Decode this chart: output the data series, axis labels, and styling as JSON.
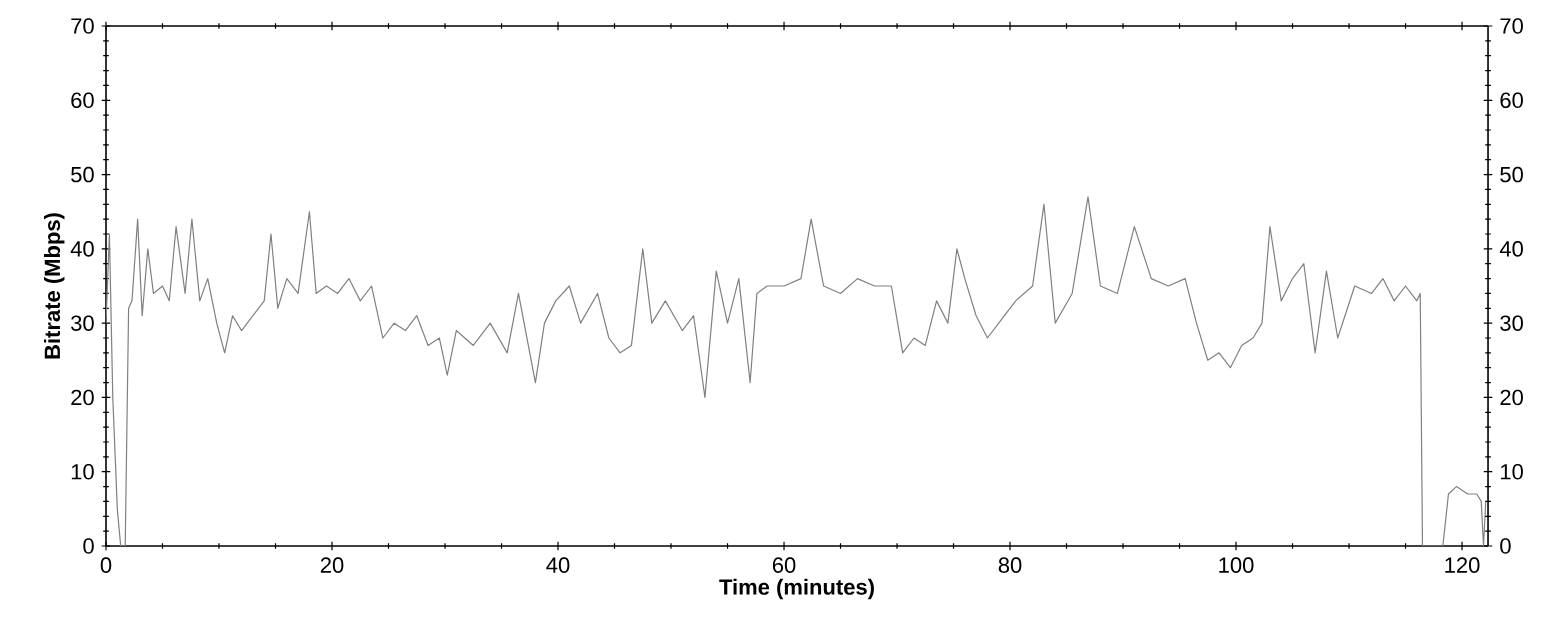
{
  "chart_data": {
    "type": "line",
    "xlabel": "Time (minutes)",
    "ylabel": "Bitrate (Mbps)",
    "xlim": [
      0,
      122.3
    ],
    "xticks": [
      0,
      20,
      40,
      60,
      80,
      100,
      120
    ],
    "ylim": [
      0,
      70
    ],
    "yticks": [
      0,
      10,
      20,
      30,
      40,
      50,
      60,
      70
    ],
    "y2lim": [
      0,
      70
    ],
    "y2ticks": [
      0,
      10,
      20,
      30,
      40,
      50,
      60,
      70
    ],
    "grid": false,
    "marker": "none",
    "line_style": "solid",
    "series": [
      {
        "color": "#808080",
        "x": [
          0,
          0.3,
          0.6,
          1.0,
          1.3,
          1.7,
          2.0,
          2.3,
          2.8,
          3.2,
          3.7,
          4.2,
          5.0,
          5.6,
          6.2,
          7.0,
          7.6,
          8.3,
          9.0,
          9.8,
          10.5,
          11.2,
          12.0,
          13.0,
          14.0,
          14.6,
          15.2,
          16.0,
          17.0,
          18.0,
          18.6,
          19.5,
          20.5,
          21.5,
          22.5,
          23.5,
          24.5,
          25.5,
          26.5,
          27.5,
          28.5,
          29.5,
          30.2,
          31.0,
          32.5,
          34.0,
          35.5,
          36.5,
          38.0,
          38.8,
          39.8,
          41.0,
          42.0,
          43.5,
          44.5,
          45.5,
          46.5,
          47.5,
          48.3,
          49.5,
          51.0,
          52.0,
          53.0,
          54.0,
          55.0,
          56.0,
          57.0,
          57.6,
          58.5,
          60.0,
          61.5,
          62.4,
          63.5,
          65.0,
          66.5,
          68.0,
          69.5,
          70.5,
          71.5,
          72.5,
          73.5,
          74.5,
          75.3,
          76.0,
          77.0,
          78.0,
          79.0,
          80.5,
          82.0,
          83.0,
          84.0,
          85.5,
          86.9,
          88.0,
          89.5,
          91.0,
          92.5,
          94.0,
          95.5,
          96.5,
          97.5,
          98.5,
          99.5,
          100.5,
          101.5,
          102.3,
          103.0,
          104.0,
          105.0,
          106.0,
          107.0,
          108.0,
          109.0,
          110.5,
          112.0,
          113.0,
          114.0,
          115.0,
          116.0,
          116.3,
          116.5,
          118.3,
          118.8,
          119.5,
          120.5,
          121.3,
          121.7,
          121.9,
          122.1
        ],
        "values": [
          30,
          42,
          20,
          5,
          0,
          0,
          32,
          33,
          44,
          31,
          40,
          34,
          35,
          33,
          43,
          34,
          44,
          33,
          36,
          30,
          26,
          31,
          29,
          31,
          33,
          42,
          32,
          36,
          34,
          45,
          34,
          35,
          34,
          36,
          33,
          35,
          28,
          30,
          29,
          31,
          27,
          28,
          23,
          29,
          27,
          30,
          26,
          34,
          22,
          30,
          33,
          35,
          30,
          34,
          28,
          26,
          27,
          40,
          30,
          33,
          29,
          31,
          20,
          37,
          30,
          36,
          22,
          34,
          35,
          35,
          36,
          44,
          35,
          34,
          36,
          35,
          35,
          26,
          28,
          27,
          33,
          30,
          40,
          36,
          31,
          28,
          30,
          33,
          35,
          46,
          30,
          34,
          47,
          35,
          34,
          43,
          36,
          35,
          36,
          30,
          25,
          26,
          24,
          27,
          28,
          30,
          43,
          33,
          36,
          38,
          26,
          37,
          28,
          35,
          34,
          36,
          33,
          35,
          33,
          34,
          0,
          0,
          7,
          8,
          7,
          7,
          6,
          0,
          6
        ]
      }
    ]
  }
}
